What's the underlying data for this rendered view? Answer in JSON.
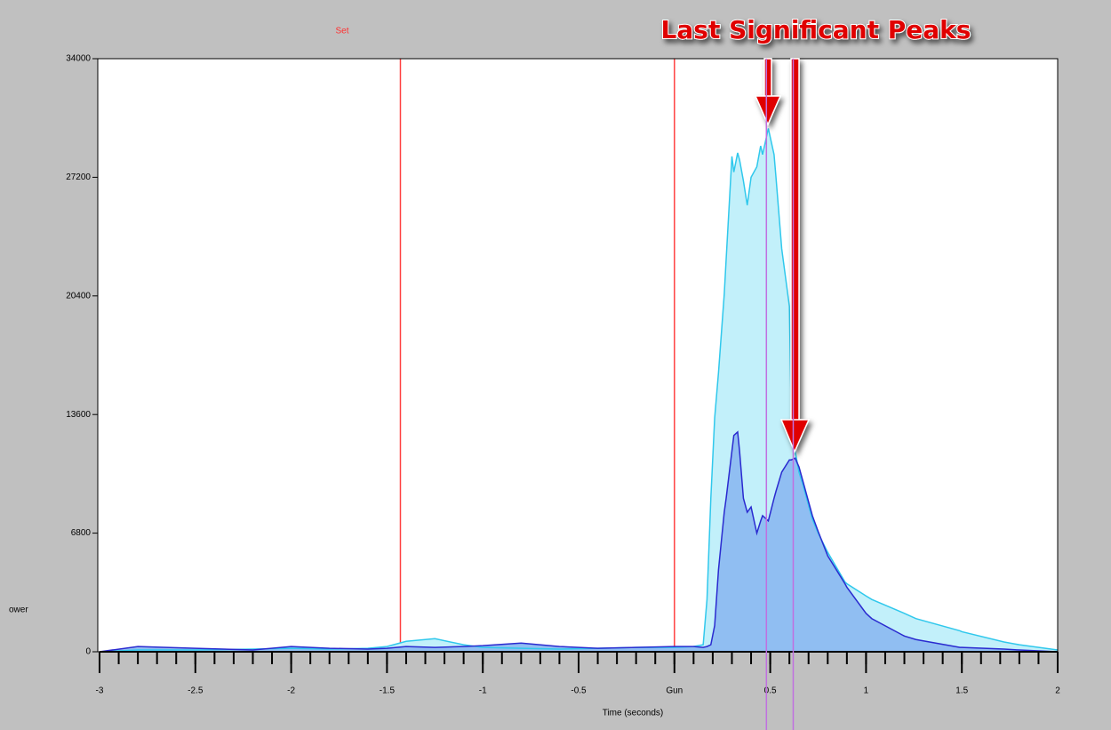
{
  "chart_data": {
    "type": "area",
    "title": "Set",
    "annotation": "Last Significant Peaks",
    "x_label": "Time (seconds)",
    "y_label": "ower",
    "xlim": [
      -3,
      2
    ],
    "ylim": [
      0,
      34000
    ],
    "xticks": [
      -3,
      -2.5,
      -2,
      -1.5,
      -1,
      -0.5,
      {
        "value": 0,
        "label": "Gun"
      },
      0.5,
      1,
      1.5,
      2
    ],
    "x_minor_tick_step": 0.1,
    "yticks": [
      0,
      6800,
      13600,
      20400,
      27200,
      34000
    ],
    "vlines": [
      {
        "x": -1.43,
        "color": "#ff4040"
      },
      {
        "x": 0,
        "color": "#ff4040"
      },
      {
        "x": 0.48,
        "color": "#c070e0"
      },
      {
        "x": 0.62,
        "color": "#c070e0"
      }
    ],
    "x": [
      -3,
      -2.8,
      -2.5,
      -2.2,
      -2,
      -1.8,
      -1.6,
      -1.5,
      -1.4,
      -1.25,
      -1.1,
      -1,
      -0.8,
      -0.6,
      -0.4,
      -0.2,
      0,
      0.1,
      0.15,
      0.17,
      0.19,
      0.21,
      0.23,
      0.26,
      0.27,
      0.3,
      0.31,
      0.33,
      0.34,
      0.36,
      0.38,
      0.4,
      0.43,
      0.45,
      0.46,
      0.49,
      0.52,
      0.53,
      0.56,
      0.6,
      0.61,
      0.63,
      0.65,
      0.67,
      0.72,
      0.75,
      0.8,
      0.89,
      0.9,
      1.0,
      1.03,
      1.2,
      1.26,
      1.49,
      1.5,
      1.72,
      1.8,
      2
    ],
    "series": [
      {
        "color": "#30c8ec",
        "fill": "#c2f0fa",
        "values": [
          0,
          100,
          100,
          150,
          200,
          150,
          200,
          300,
          600,
          750,
          400,
          250,
          200,
          150,
          200,
          250,
          250,
          300,
          400,
          3000,
          8800,
          13400,
          16000,
          20500,
          22500,
          28400,
          27500,
          28600,
          28200,
          27000,
          25600,
          27200,
          27800,
          29000,
          28500,
          30000,
          28500,
          27200,
          23100,
          19800,
          13400,
          11500,
          10300,
          9600,
          7600,
          6800,
          5700,
          4000,
          3900,
          3200,
          3000,
          2200,
          1900,
          1200,
          1150,
          560,
          400,
          100
        ]
      },
      {
        "color": "#2a2ad0",
        "fill": "#90bef2",
        "values": [
          0,
          300,
          200,
          100,
          300,
          200,
          150,
          200,
          300,
          250,
          300,
          350,
          500,
          300,
          200,
          250,
          300,
          300,
          250,
          300,
          400,
          1500,
          4700,
          8000,
          8800,
          11500,
          12400,
          12600,
          11500,
          8800,
          8000,
          8300,
          6800,
          7500,
          7800,
          7500,
          8800,
          9200,
          10300,
          11000,
          11000,
          11100,
          10600,
          9800,
          7800,
          6900,
          5500,
          3900,
          3700,
          2200,
          1900,
          900,
          700,
          250,
          250,
          150,
          100,
          0
        ]
      }
    ]
  }
}
